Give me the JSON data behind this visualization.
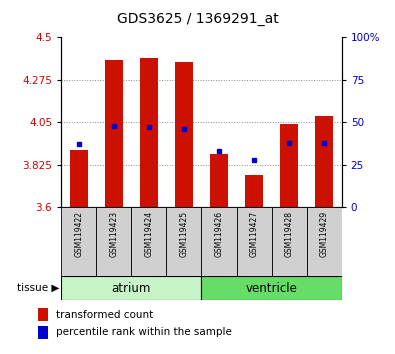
{
  "title": "GDS3625 / 1369291_at",
  "samples": [
    "GSM119422",
    "GSM119423",
    "GSM119424",
    "GSM119425",
    "GSM119426",
    "GSM119427",
    "GSM119428",
    "GSM119429"
  ],
  "red_values": [
    3.9,
    4.38,
    4.39,
    4.37,
    3.88,
    3.77,
    4.04,
    4.08
  ],
  "blue_percentiles": [
    37,
    48,
    47,
    46,
    33,
    28,
    38,
    38
  ],
  "baseline": 3.6,
  "ylim": [
    3.6,
    4.5
  ],
  "yticks_left": [
    3.6,
    3.825,
    4.05,
    4.275,
    4.5
  ],
  "yticks_right": [
    0,
    25,
    50,
    75,
    100
  ],
  "tissue_groups": [
    {
      "label": "atrium",
      "start": 0,
      "end": 4,
      "color": "#c8f5c8"
    },
    {
      "label": "ventricle",
      "start": 4,
      "end": 8,
      "color": "#66dd66"
    }
  ],
  "bar_color": "#cc1100",
  "dot_color": "#0000cc",
  "tick_label_color_left": "#cc0000",
  "tick_label_color_right": "#0000cc",
  "sample_bg_color": "#d0d0d0",
  "bar_width": 0.5
}
